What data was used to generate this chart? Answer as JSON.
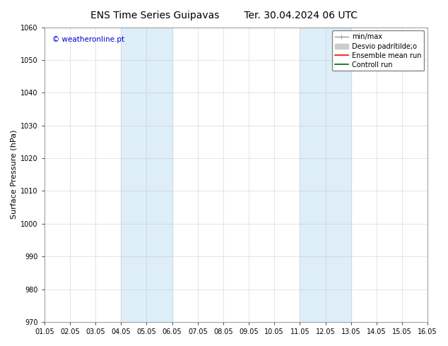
{
  "title_left": "ENS Time Series Guipavas",
  "title_right": "Ter. 30.04.2024 06 UTC",
  "ylabel": "Surface Pressure (hPa)",
  "xlabel": "",
  "ylim": [
    970,
    1060
  ],
  "xlim": [
    0,
    15
  ],
  "yticks": [
    970,
    980,
    990,
    1000,
    1010,
    1020,
    1030,
    1040,
    1050,
    1060
  ],
  "xtick_labels": [
    "01.05",
    "02.05",
    "03.05",
    "04.05",
    "05.05",
    "06.05",
    "07.05",
    "08.05",
    "09.05",
    "10.05",
    "11.05",
    "12.05",
    "13.05",
    "14.05",
    "15.05",
    "16.05"
  ],
  "xtick_positions": [
    0,
    1,
    2,
    3,
    4,
    5,
    6,
    7,
    8,
    9,
    10,
    11,
    12,
    13,
    14,
    15
  ],
  "shaded_bands": [
    {
      "x_start": 3,
      "x_end": 5
    },
    {
      "x_start": 10,
      "x_end": 12
    }
  ],
  "shaded_color": "#ddeef8",
  "background_color": "#ffffff",
  "plot_bg_color": "#ffffff",
  "grid_color": "#bbbbbb",
  "watermark_text": "© weatheronline.pt",
  "watermark_color": "#0000cc",
  "title_fontsize": 10,
  "tick_fontsize": 7,
  "ylabel_fontsize": 8,
  "watermark_fontsize": 7.5,
  "legend_fontsize": 7
}
